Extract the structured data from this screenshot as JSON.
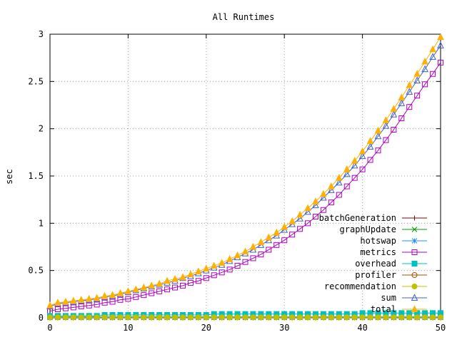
{
  "chart_data": {
    "type": "line",
    "title": "All Runtimes",
    "xlabel": "",
    "ylabel": "sec",
    "xlim": [
      0,
      50
    ],
    "ylim": [
      0,
      3
    ],
    "x_ticks": [
      0,
      10,
      20,
      30,
      40,
      50
    ],
    "y_ticks": [
      0,
      0.5,
      1,
      1.5,
      2,
      2.5,
      3
    ],
    "x_tick_labels": [
      "0",
      "10",
      "20",
      "30",
      "40",
      "50"
    ],
    "y_tick_labels": [
      "0",
      "0.5",
      "1",
      "1.5",
      "2",
      "2.5",
      "3"
    ],
    "grid": true,
    "legend_position": "bottom-right",
    "x": [
      0,
      1,
      2,
      3,
      4,
      5,
      6,
      7,
      8,
      9,
      10,
      11,
      12,
      13,
      14,
      15,
      16,
      17,
      18,
      19,
      20,
      21,
      22,
      23,
      24,
      25,
      26,
      27,
      28,
      29,
      30,
      31,
      32,
      33,
      34,
      35,
      36,
      37,
      38,
      39,
      40,
      41,
      42,
      43,
      44,
      45,
      46,
      47,
      48,
      49,
      50
    ],
    "series": [
      {
        "name": "batchGeneration",
        "color": "#8b0000",
        "marker": "plus",
        "values": [
          0.002,
          0.002,
          0.002,
          0.002,
          0.002,
          0.002,
          0.002,
          0.002,
          0.002,
          0.002,
          0.002,
          0.002,
          0.002,
          0.002,
          0.002,
          0.002,
          0.002,
          0.002,
          0.002,
          0.002,
          0.002,
          0.002,
          0.002,
          0.002,
          0.002,
          0.002,
          0.002,
          0.002,
          0.002,
          0.002,
          0.002,
          0.002,
          0.002,
          0.002,
          0.002,
          0.002,
          0.002,
          0.002,
          0.002,
          0.002,
          0.002,
          0.002,
          0.002,
          0.002,
          0.002,
          0.002,
          0.002,
          0.002,
          0.002,
          0.002,
          0.002
        ]
      },
      {
        "name": "graphUpdate",
        "color": "#00a000",
        "marker": "cross",
        "values": [
          0.003,
          0.003,
          0.003,
          0.003,
          0.003,
          0.003,
          0.003,
          0.003,
          0.003,
          0.003,
          0.003,
          0.003,
          0.003,
          0.003,
          0.003,
          0.003,
          0.003,
          0.003,
          0.003,
          0.003,
          0.003,
          0.003,
          0.003,
          0.003,
          0.003,
          0.003,
          0.003,
          0.003,
          0.003,
          0.003,
          0.003,
          0.003,
          0.003,
          0.003,
          0.003,
          0.003,
          0.003,
          0.003,
          0.003,
          0.003,
          0.003,
          0.003,
          0.003,
          0.003,
          0.003,
          0.003,
          0.003,
          0.003,
          0.003,
          0.003,
          0.003
        ]
      },
      {
        "name": "hotswap",
        "color": "#1e90ff",
        "marker": "star",
        "values": [
          0.01,
          0.01,
          0.01,
          0.01,
          0.01,
          0.01,
          0.01,
          0.01,
          0.01,
          0.01,
          0.01,
          0.01,
          0.01,
          0.01,
          0.01,
          0.01,
          0.01,
          0.01,
          0.01,
          0.01,
          0.01,
          0.01,
          0.01,
          0.01,
          0.01,
          0.01,
          0.01,
          0.01,
          0.01,
          0.01,
          0.01,
          0.01,
          0.01,
          0.01,
          0.01,
          0.01,
          0.01,
          0.01,
          0.01,
          0.01,
          0.01,
          0.01,
          0.01,
          0.01,
          0.01,
          0.01,
          0.01,
          0.01,
          0.01,
          0.01,
          0.01
        ]
      },
      {
        "name": "metrics",
        "color": "#b000c0",
        "marker": "square",
        "values": [
          0.07,
          0.09,
          0.1,
          0.11,
          0.12,
          0.13,
          0.14,
          0.16,
          0.17,
          0.19,
          0.2,
          0.22,
          0.24,
          0.26,
          0.28,
          0.3,
          0.32,
          0.34,
          0.37,
          0.39,
          0.42,
          0.45,
          0.48,
          0.51,
          0.55,
          0.59,
          0.63,
          0.67,
          0.72,
          0.77,
          0.82,
          0.88,
          0.94,
          1.0,
          1.07,
          1.14,
          1.22,
          1.3,
          1.39,
          1.48,
          1.57,
          1.67,
          1.77,
          1.88,
          1.99,
          2.11,
          2.23,
          2.35,
          2.47,
          2.58,
          2.7
        ]
      },
      {
        "name": "overhead",
        "color": "#00c0c0",
        "marker": "filled-square",
        "values": [
          0.02,
          0.02,
          0.02,
          0.02,
          0.02,
          0.02,
          0.02,
          0.03,
          0.03,
          0.03,
          0.03,
          0.03,
          0.03,
          0.03,
          0.03,
          0.03,
          0.03,
          0.03,
          0.03,
          0.03,
          0.03,
          0.04,
          0.04,
          0.04,
          0.04,
          0.04,
          0.04,
          0.04,
          0.04,
          0.04,
          0.04,
          0.04,
          0.04,
          0.04,
          0.04,
          0.04,
          0.04,
          0.04,
          0.04,
          0.04,
          0.05,
          0.05,
          0.05,
          0.05,
          0.05,
          0.05,
          0.05,
          0.05,
          0.05,
          0.05,
          0.05
        ]
      },
      {
        "name": "profiler",
        "color": "#a05000",
        "marker": "circle",
        "values": [
          0.004,
          0.004,
          0.004,
          0.004,
          0.004,
          0.004,
          0.004,
          0.004,
          0.004,
          0.004,
          0.004,
          0.004,
          0.004,
          0.004,
          0.004,
          0.004,
          0.004,
          0.004,
          0.004,
          0.004,
          0.004,
          0.004,
          0.004,
          0.004,
          0.004,
          0.004,
          0.004,
          0.004,
          0.004,
          0.004,
          0.004,
          0.004,
          0.004,
          0.004,
          0.004,
          0.004,
          0.004,
          0.004,
          0.004,
          0.004,
          0.004,
          0.004,
          0.004,
          0.004,
          0.004,
          0.004,
          0.004,
          0.004,
          0.004,
          0.004,
          0.004
        ]
      },
      {
        "name": "recommendation",
        "color": "#c0c000",
        "marker": "filled-circle",
        "values": [
          0.006,
          0.006,
          0.006,
          0.006,
          0.006,
          0.006,
          0.006,
          0.006,
          0.006,
          0.006,
          0.006,
          0.006,
          0.006,
          0.006,
          0.006,
          0.006,
          0.006,
          0.006,
          0.006,
          0.006,
          0.006,
          0.006,
          0.006,
          0.006,
          0.006,
          0.006,
          0.006,
          0.006,
          0.006,
          0.006,
          0.006,
          0.006,
          0.006,
          0.006,
          0.006,
          0.006,
          0.006,
          0.006,
          0.006,
          0.006,
          0.006,
          0.006,
          0.006,
          0.006,
          0.006,
          0.006,
          0.006,
          0.006,
          0.006,
          0.006,
          0.006
        ]
      },
      {
        "name": "sum",
        "color": "#4060c0",
        "marker": "triangle",
        "values": [
          0.12,
          0.15,
          0.16,
          0.17,
          0.18,
          0.19,
          0.2,
          0.22,
          0.23,
          0.25,
          0.27,
          0.29,
          0.31,
          0.33,
          0.35,
          0.37,
          0.39,
          0.42,
          0.44,
          0.47,
          0.5,
          0.53,
          0.56,
          0.6,
          0.64,
          0.68,
          0.72,
          0.77,
          0.82,
          0.87,
          0.93,
          0.99,
          1.05,
          1.12,
          1.19,
          1.27,
          1.35,
          1.43,
          1.52,
          1.61,
          1.71,
          1.81,
          1.92,
          2.03,
          2.15,
          2.27,
          2.39,
          2.51,
          2.63,
          2.76,
          2.88
        ]
      },
      {
        "name": "total",
        "color": "#ffb000",
        "marker": "filled-triangle",
        "values": [
          0.13,
          0.16,
          0.17,
          0.18,
          0.19,
          0.2,
          0.21,
          0.23,
          0.24,
          0.26,
          0.28,
          0.3,
          0.32,
          0.34,
          0.36,
          0.39,
          0.41,
          0.43,
          0.46,
          0.49,
          0.52,
          0.55,
          0.58,
          0.62,
          0.66,
          0.7,
          0.75,
          0.8,
          0.85,
          0.9,
          0.96,
          1.02,
          1.09,
          1.16,
          1.23,
          1.31,
          1.39,
          1.48,
          1.57,
          1.66,
          1.76,
          1.87,
          1.98,
          2.09,
          2.21,
          2.33,
          2.46,
          2.58,
          2.71,
          2.84,
          2.97
        ]
      }
    ]
  }
}
